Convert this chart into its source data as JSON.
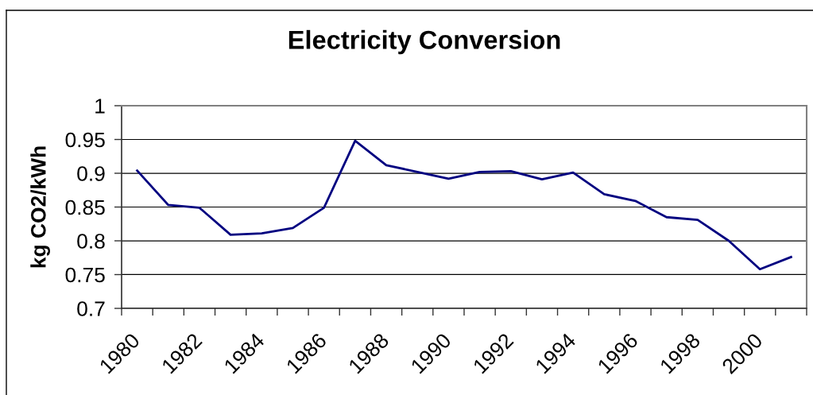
{
  "chart_data": {
    "type": "line",
    "title": "Electricity Conversion",
    "ylabel": "kg CO2/kWh",
    "categories": [
      "1980",
      null,
      "1982",
      null,
      "1984",
      null,
      "1986",
      null,
      "1988",
      null,
      "1990",
      null,
      "1992",
      null,
      "1994",
      null,
      "1996",
      null,
      "1998",
      null,
      "2000",
      null
    ],
    "series": [
      {
        "color": "#000080",
        "values": [
          0.904,
          0.853,
          0.849,
          0.809,
          0.811,
          0.819,
          0.849,
          0.948,
          0.912,
          0.902,
          0.892,
          0.902,
          0.903,
          0.891,
          0.901,
          0.869,
          0.859,
          0.835,
          0.831,
          0.8,
          0.758,
          0.776
        ]
      }
    ],
    "ylim": [
      0.7,
      1
    ],
    "yticks": [
      0.7,
      0.75,
      0.8,
      0.85,
      0.9,
      0.95,
      1
    ],
    "grid": "y",
    "line_style": "solid"
  }
}
